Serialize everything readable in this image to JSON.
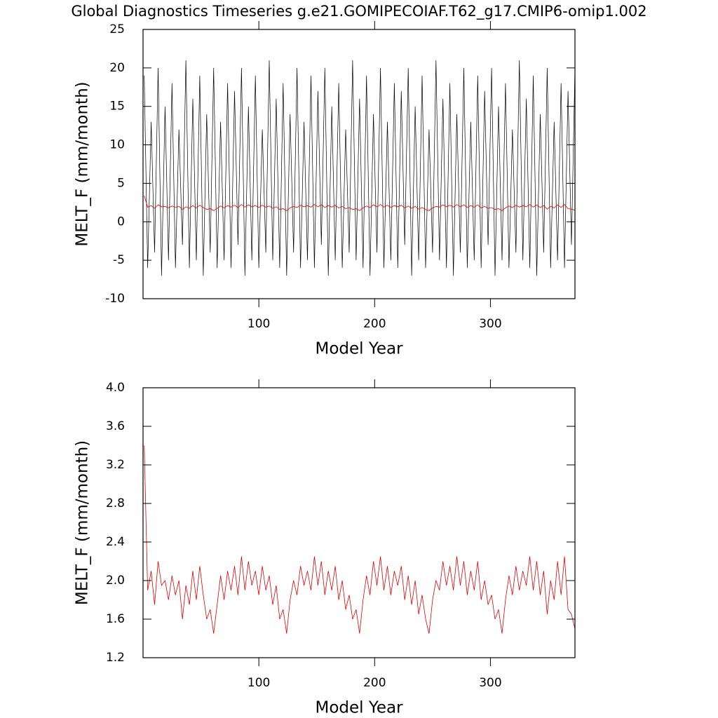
{
  "title": "Global Diagnostics Timeseries g.e21.GOMIPECOIAF.T62_g17.CMIP6-omip1.002",
  "charts": [
    {
      "type": "line",
      "xlabel": "Model Year",
      "ylabel": "MELT_F (mm/month)",
      "xlim": [
        0,
        373
      ],
      "xticks": [
        100,
        200,
        300
      ],
      "ylim": [
        -10,
        25
      ],
      "yticks": [
        25,
        20,
        15,
        10,
        5,
        0,
        -5,
        -10
      ],
      "x": [
        1,
        4,
        7,
        10,
        13,
        16,
        19,
        22,
        25,
        28,
        31,
        34,
        37,
        40,
        43,
        46,
        49,
        52,
        55,
        58,
        61,
        64,
        67,
        70,
        73,
        76,
        79,
        82,
        85,
        88,
        91,
        94,
        97,
        100,
        103,
        106,
        109,
        112,
        115,
        118,
        121,
        124,
        127,
        130,
        133,
        136,
        139,
        142,
        145,
        148,
        151,
        154,
        157,
        160,
        163,
        166,
        169,
        172,
        175,
        178,
        181,
        184,
        187,
        190,
        193,
        196,
        199,
        202,
        205,
        208,
        211,
        214,
        217,
        220,
        223,
        226,
        229,
        232,
        235,
        238,
        241,
        244,
        247,
        250,
        253,
        256,
        259,
        262,
        265,
        268,
        271,
        274,
        277,
        280,
        283,
        286,
        289,
        292,
        295,
        298,
        301,
        304,
        307,
        310,
        313,
        316,
        319,
        322,
        325,
        328,
        331,
        334,
        337,
        340,
        343,
        346,
        349,
        352,
        355,
        358,
        361,
        364,
        367,
        370,
        373
      ],
      "series": [
        {
          "color": "#000000",
          "values": [
            19,
            -6,
            13,
            -4,
            20,
            -7,
            15,
            -5,
            18,
            -6,
            12,
            -3,
            21,
            -6,
            16,
            -5,
            19,
            -7,
            14,
            -4,
            20,
            -6,
            13,
            -5,
            18,
            -6,
            17,
            -3,
            20,
            -7,
            15,
            -5,
            19,
            -6,
            12,
            -4,
            21,
            -5,
            16,
            -6,
            18,
            -7,
            14,
            -4,
            20,
            -6,
            13,
            -5,
            19,
            -6,
            17,
            -3,
            20,
            -7,
            15,
            -5,
            18,
            -6,
            12,
            -4,
            21,
            -5,
            16,
            -6,
            19,
            -7,
            14,
            -4,
            20,
            -6,
            13,
            -5,
            18,
            -6,
            17,
            -3,
            20,
            -7,
            15,
            -5,
            19,
            -6,
            12,
            -4,
            21,
            -5,
            16,
            -6,
            18,
            -7,
            14,
            -4,
            20,
            -6,
            13,
            -5,
            19,
            -6,
            17,
            -3,
            20,
            -7,
            15,
            -5,
            18,
            -6,
            12,
            -4,
            21,
            -5,
            16,
            -6,
            19,
            -7,
            14,
            -4,
            20,
            -6,
            13,
            -5,
            18,
            -6,
            17,
            -3,
            20
          ]
        },
        {
          "color": "#e00000",
          "values": [
            3.4,
            1.9,
            2.1,
            1.75,
            2.2,
            1.95,
            2.0,
            1.8,
            2.05,
            1.85,
            2.0,
            1.6,
            1.95,
            1.75,
            2.1,
            1.8,
            2.15,
            1.85,
            1.6,
            1.7,
            1.45,
            1.75,
            2.05,
            1.8,
            2.1,
            1.9,
            2.15,
            1.85,
            2.25,
            1.9,
            2.2,
            1.95,
            2.1,
            1.85,
            2.15,
            1.9,
            2.05,
            1.75,
            1.95,
            1.6,
            1.7,
            1.45,
            1.8,
            2.0,
            1.85,
            2.15,
            1.95,
            2.1,
            1.9,
            2.25,
            1.95,
            2.2,
            1.85,
            2.1,
            1.9,
            2.15,
            1.8,
            2.0,
            1.7,
            1.85,
            1.6,
            1.7,
            1.45,
            1.8,
            2.05,
            1.85,
            2.2,
            1.95,
            2.25,
            1.9,
            2.15,
            1.85,
            2.1,
            1.95,
            2.15,
            1.8,
            2.05,
            1.75,
            2.0,
            1.65,
            1.85,
            1.6,
            1.45,
            1.8,
            2.0,
            1.9,
            2.2,
            1.95,
            2.15,
            1.9,
            2.25,
            1.95,
            2.2,
            1.85,
            2.1,
            1.9,
            2.2,
            1.8,
            2.0,
            1.75,
            1.85,
            1.6,
            1.7,
            1.45,
            1.8,
            2.05,
            1.85,
            2.15,
            1.9,
            2.1,
            1.95,
            2.25,
            1.9,
            2.2,
            1.85,
            2.1,
            1.65,
            2.0,
            1.8,
            2.2,
            1.85,
            2.25,
            1.7,
            1.65,
            1.5
          ]
        }
      ]
    },
    {
      "type": "line",
      "xlabel": "Model Year",
      "ylabel": "MELT_F (mm/month)",
      "xlim": [
        0,
        373
      ],
      "xticks": [
        100,
        200,
        300
      ],
      "ylim": [
        1.2,
        4
      ],
      "yticks": [
        {
          "value": 4,
          "label": "4.0"
        },
        3.6,
        3.2,
        2.8,
        2.4,
        {
          "value": 2,
          "label": "2.0"
        },
        1.6,
        1.2
      ],
      "x": [
        1,
        4,
        7,
        10,
        13,
        16,
        19,
        22,
        25,
        28,
        31,
        34,
        37,
        40,
        43,
        46,
        49,
        52,
        55,
        58,
        61,
        64,
        67,
        70,
        73,
        76,
        79,
        82,
        85,
        88,
        91,
        94,
        97,
        100,
        103,
        106,
        109,
        112,
        115,
        118,
        121,
        124,
        127,
        130,
        133,
        136,
        139,
        142,
        145,
        148,
        151,
        154,
        157,
        160,
        163,
        166,
        169,
        172,
        175,
        178,
        181,
        184,
        187,
        190,
        193,
        196,
        199,
        202,
        205,
        208,
        211,
        214,
        217,
        220,
        223,
        226,
        229,
        232,
        235,
        238,
        241,
        244,
        247,
        250,
        253,
        256,
        259,
        262,
        265,
        268,
        271,
        274,
        277,
        280,
        283,
        286,
        289,
        292,
        295,
        298,
        301,
        304,
        307,
        310,
        313,
        316,
        319,
        322,
        325,
        328,
        331,
        334,
        337,
        340,
        343,
        346,
        349,
        352,
        355,
        358,
        361,
        364,
        367,
        370,
        373
      ],
      "series": [
        {
          "color": "#e00000",
          "values": [
            3.4,
            1.9,
            2.1,
            1.75,
            2.2,
            1.95,
            2.0,
            1.8,
            2.05,
            1.85,
            2.0,
            1.6,
            1.95,
            1.75,
            2.1,
            1.8,
            2.15,
            1.85,
            1.6,
            1.7,
            1.45,
            1.75,
            2.05,
            1.8,
            2.1,
            1.9,
            2.15,
            1.85,
            2.25,
            1.9,
            2.2,
            1.95,
            2.1,
            1.85,
            2.15,
            1.9,
            2.05,
            1.75,
            1.95,
            1.6,
            1.7,
            1.45,
            1.8,
            2.0,
            1.85,
            2.15,
            1.95,
            2.1,
            1.9,
            2.25,
            1.95,
            2.2,
            1.85,
            2.1,
            1.9,
            2.15,
            1.8,
            2.0,
            1.7,
            1.85,
            1.6,
            1.7,
            1.45,
            1.8,
            2.05,
            1.85,
            2.2,
            1.95,
            2.25,
            1.9,
            2.15,
            1.85,
            2.1,
            1.95,
            2.15,
            1.8,
            2.05,
            1.75,
            2.0,
            1.65,
            1.85,
            1.6,
            1.45,
            1.8,
            2.0,
            1.9,
            2.2,
            1.95,
            2.15,
            1.9,
            2.25,
            1.95,
            2.2,
            1.85,
            2.1,
            1.9,
            2.2,
            1.8,
            2.0,
            1.75,
            1.85,
            1.6,
            1.7,
            1.45,
            1.8,
            2.05,
            1.85,
            2.15,
            1.9,
            2.1,
            1.95,
            2.25,
            1.9,
            2.2,
            1.85,
            2.1,
            1.65,
            2.0,
            1.8,
            2.2,
            1.85,
            2.25,
            1.7,
            1.65,
            1.5
          ]
        }
      ]
    }
  ]
}
